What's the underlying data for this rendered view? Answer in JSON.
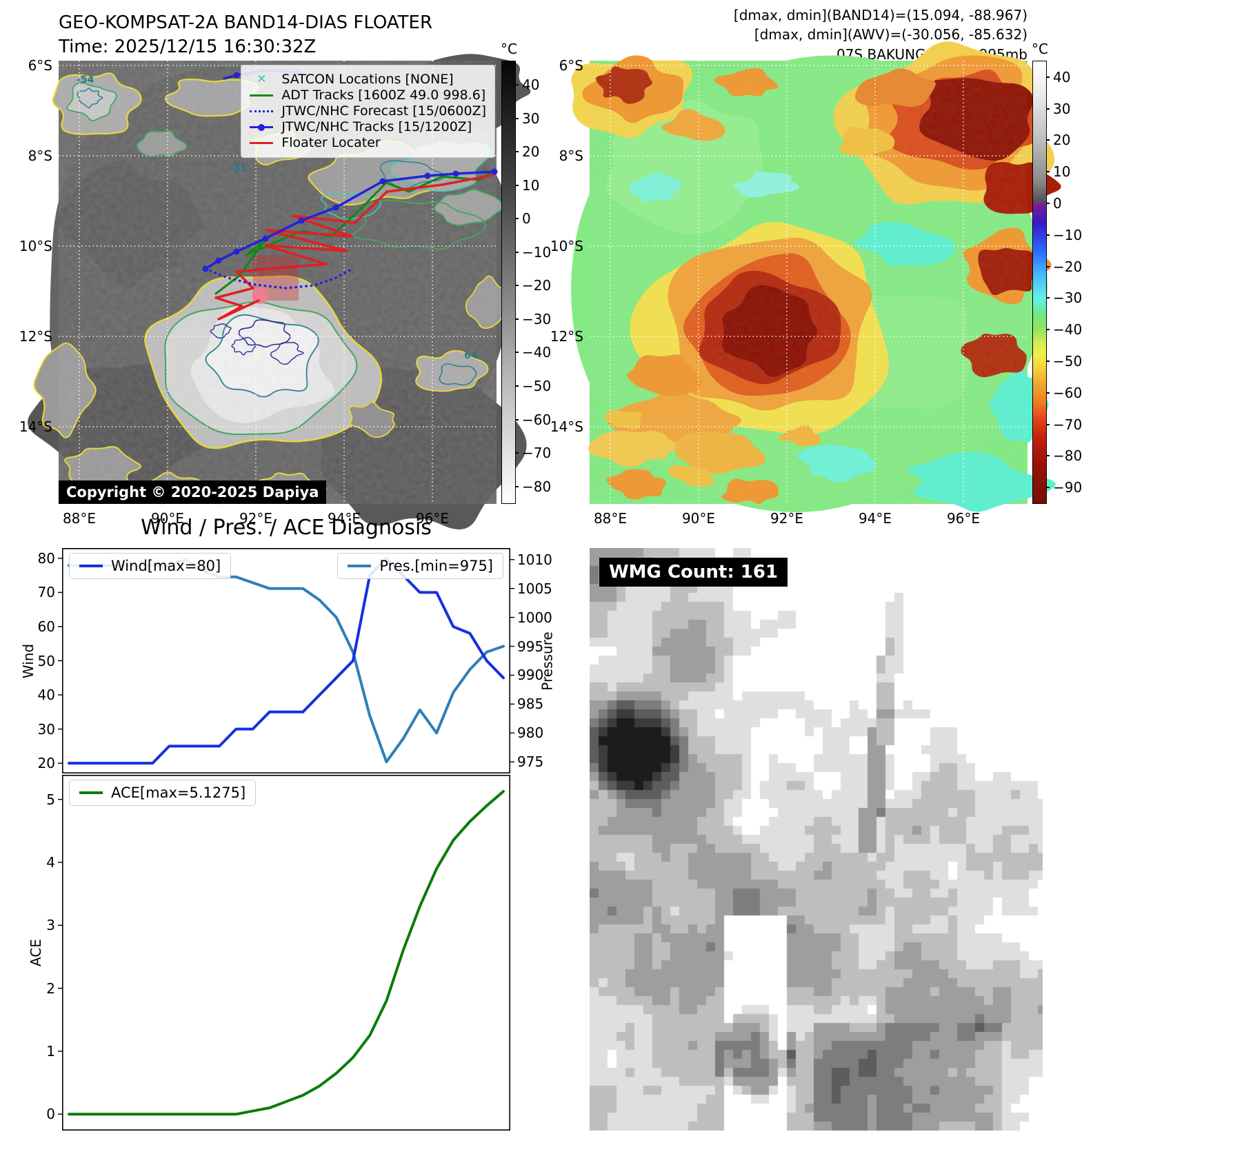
{
  "colors": {
    "wind_line": "#1630e0",
    "pres_line": "#2e7fb8",
    "ace_line": "#0a7d0a",
    "adt_track": "#0f8a0f",
    "jtwc_track": "#2323d8",
    "forecast_track": "#2323d8",
    "floater_track": "#e02020",
    "satcon_marker": "#2cc7ca"
  },
  "panel_ir": {
    "title": "GEO-KOMPSAT-2A BAND14-DIAS FLOATER",
    "subtitle": "Time: 2025/12/15 16:30:32Z",
    "copyright": "Copyright © 2020-2025 Dapiya",
    "legend": [
      "SATCON Locations [NONE]",
      "ADT Tracks [1600Z 49.0 998.6]",
      "JTWC/NHC Forecast [15/0600Z]",
      "JTWC/NHC Tracks [15/1200Z]",
      "Floater Locater"
    ],
    "lat_ticks": [
      "6°S",
      "8°S",
      "10°S",
      "12°S",
      "14°S"
    ],
    "lon_ticks": [
      "88°E",
      "90°E",
      "92°E",
      "94°E",
      "96°E"
    ],
    "colorbar_unit": "°C",
    "colorbar_ticks": [
      40,
      30,
      20,
      10,
      0,
      -10,
      -20,
      -30,
      -40,
      -50,
      -60,
      -70,
      -80
    ],
    "contour_labels": [
      "-54",
      "-31",
      "64"
    ]
  },
  "panel_awv": {
    "header": [
      "[dmax, dmin](BAND14)=(15.094, -88.967)",
      "[dmax, dmin](AWV)=(-30.056, -85.632)",
      "07S.BAKUNG | 45kt, 995mb"
    ],
    "lat_ticks": [
      "6°S",
      "8°S",
      "10°S",
      "12°S",
      "14°S"
    ],
    "lon_ticks": [
      "88°E",
      "90°E",
      "92°E",
      "94°E",
      "96°E"
    ],
    "colorbar_unit": "°C",
    "colorbar_ticks": [
      40,
      30,
      20,
      10,
      0,
      -10,
      -20,
      -30,
      -40,
      -50,
      -60,
      -70,
      -80,
      -90
    ]
  },
  "diagnosis": {
    "title": "Wind / Pres. / ACE Diagnosis",
    "wind_axis_label": "Wind",
    "pressure_axis_label": "Pressure",
    "ace_axis_label": "ACE",
    "legend_wind": "Wind[max=80]",
    "legend_pres": "Pres.[min=975]",
    "legend_ace": "ACE[max=5.1275]"
  },
  "wmg": {
    "label": "WMG Count: 161"
  },
  "chart_data": [
    {
      "type": "line",
      "title": "Wind / Pres. / ACE Diagnosis — top panel (Wind & Pressure vs time)",
      "x_note": "27 evenly spaced time steps; x tick labels not shown in figure",
      "series": [
        {
          "name": "Wind[max=80]",
          "axis": "left",
          "color": "#1630e0",
          "values": [
            20,
            20,
            20,
            20,
            20,
            20,
            25,
            25,
            25,
            25,
            30,
            30,
            35,
            35,
            35,
            40,
            45,
            50,
            75,
            80,
            75,
            70,
            70,
            60,
            58,
            50,
            45
          ]
        },
        {
          "name": "Pres.[min=975]",
          "axis": "right",
          "color": "#2e7fb8",
          "values": [
            1009,
            1009,
            1009,
            1009,
            1009,
            1009,
            1009,
            1010,
            1008,
            1007,
            1007,
            1006,
            1005,
            1005,
            1005,
            1003,
            1000,
            994,
            983,
            975,
            979,
            984,
            980,
            987,
            991,
            994,
            995
          ]
        }
      ],
      "ylabel_left": "Wind",
      "ylim_left": [
        17,
        83
      ],
      "yticks_left": [
        20,
        30,
        40,
        50,
        60,
        70,
        80
      ],
      "ylabel_right": "Pressure",
      "ylim_right": [
        973,
        1012
      ],
      "yticks_right": [
        975,
        980,
        985,
        990,
        995,
        1000,
        1005,
        1010
      ],
      "grid": false,
      "legend_position": "top-left (Wind), top-right (Pres.)"
    },
    {
      "type": "line",
      "title": "Wind / Pres. / ACE Diagnosis — bottom panel (ACE vs time)",
      "x_note": "same 27 time steps as top panel",
      "series": [
        {
          "name": "ACE[max=5.1275]",
          "color": "#0a7d0a",
          "values": [
            0,
            0,
            0,
            0,
            0,
            0,
            0,
            0,
            0,
            0,
            0,
            0.05,
            0.1,
            0.2,
            0.3,
            0.45,
            0.65,
            0.9,
            1.25,
            1.8,
            2.6,
            3.3,
            3.9,
            4.35,
            4.65,
            4.9,
            5.1275
          ]
        }
      ],
      "ylabel": "ACE",
      "ylim": [
        -0.26,
        5.39
      ],
      "yticks": [
        0,
        1,
        2,
        3,
        4,
        5
      ],
      "grid": false,
      "legend_position": "top-left"
    }
  ]
}
